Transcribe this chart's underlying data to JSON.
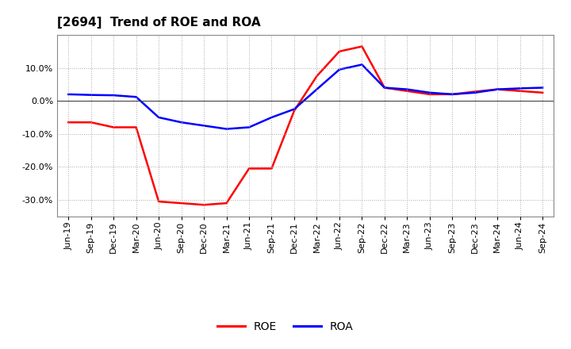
{
  "title": "[2694]  Trend of ROE and ROA",
  "labels": [
    "Jun-19",
    "Sep-19",
    "Dec-19",
    "Mar-20",
    "Jun-20",
    "Sep-20",
    "Dec-20",
    "Mar-21",
    "Jun-21",
    "Sep-21",
    "Dec-21",
    "Mar-22",
    "Jun-22",
    "Sep-22",
    "Dec-22",
    "Mar-23",
    "Jun-23",
    "Sep-23",
    "Dec-23",
    "Mar-24",
    "Jun-24",
    "Sep-24"
  ],
  "roe": [
    -6.5,
    -6.5,
    -8.0,
    -8.0,
    -30.5,
    -31.0,
    -31.5,
    -31.0,
    -20.5,
    -20.5,
    -3.0,
    7.5,
    15.0,
    16.5,
    4.0,
    3.0,
    2.0,
    2.0,
    2.8,
    3.5,
    3.0,
    2.5
  ],
  "roa": [
    2.0,
    1.8,
    1.7,
    1.2,
    -5.0,
    -6.5,
    -7.5,
    -8.5,
    -8.0,
    -5.0,
    -2.5,
    3.5,
    9.5,
    11.0,
    4.0,
    3.5,
    2.5,
    2.0,
    2.5,
    3.5,
    3.8,
    4.0
  ],
  "roe_color": "#ff0000",
  "roa_color": "#0000ff",
  "background_color": "#ffffff",
  "grid_color": "#aaaaaa",
  "ylim": [
    -35,
    20
  ],
  "yticks": [
    -30,
    -20,
    -10,
    0,
    10
  ],
  "title_fontsize": 11,
  "legend_fontsize": 10,
  "tick_fontsize": 8
}
